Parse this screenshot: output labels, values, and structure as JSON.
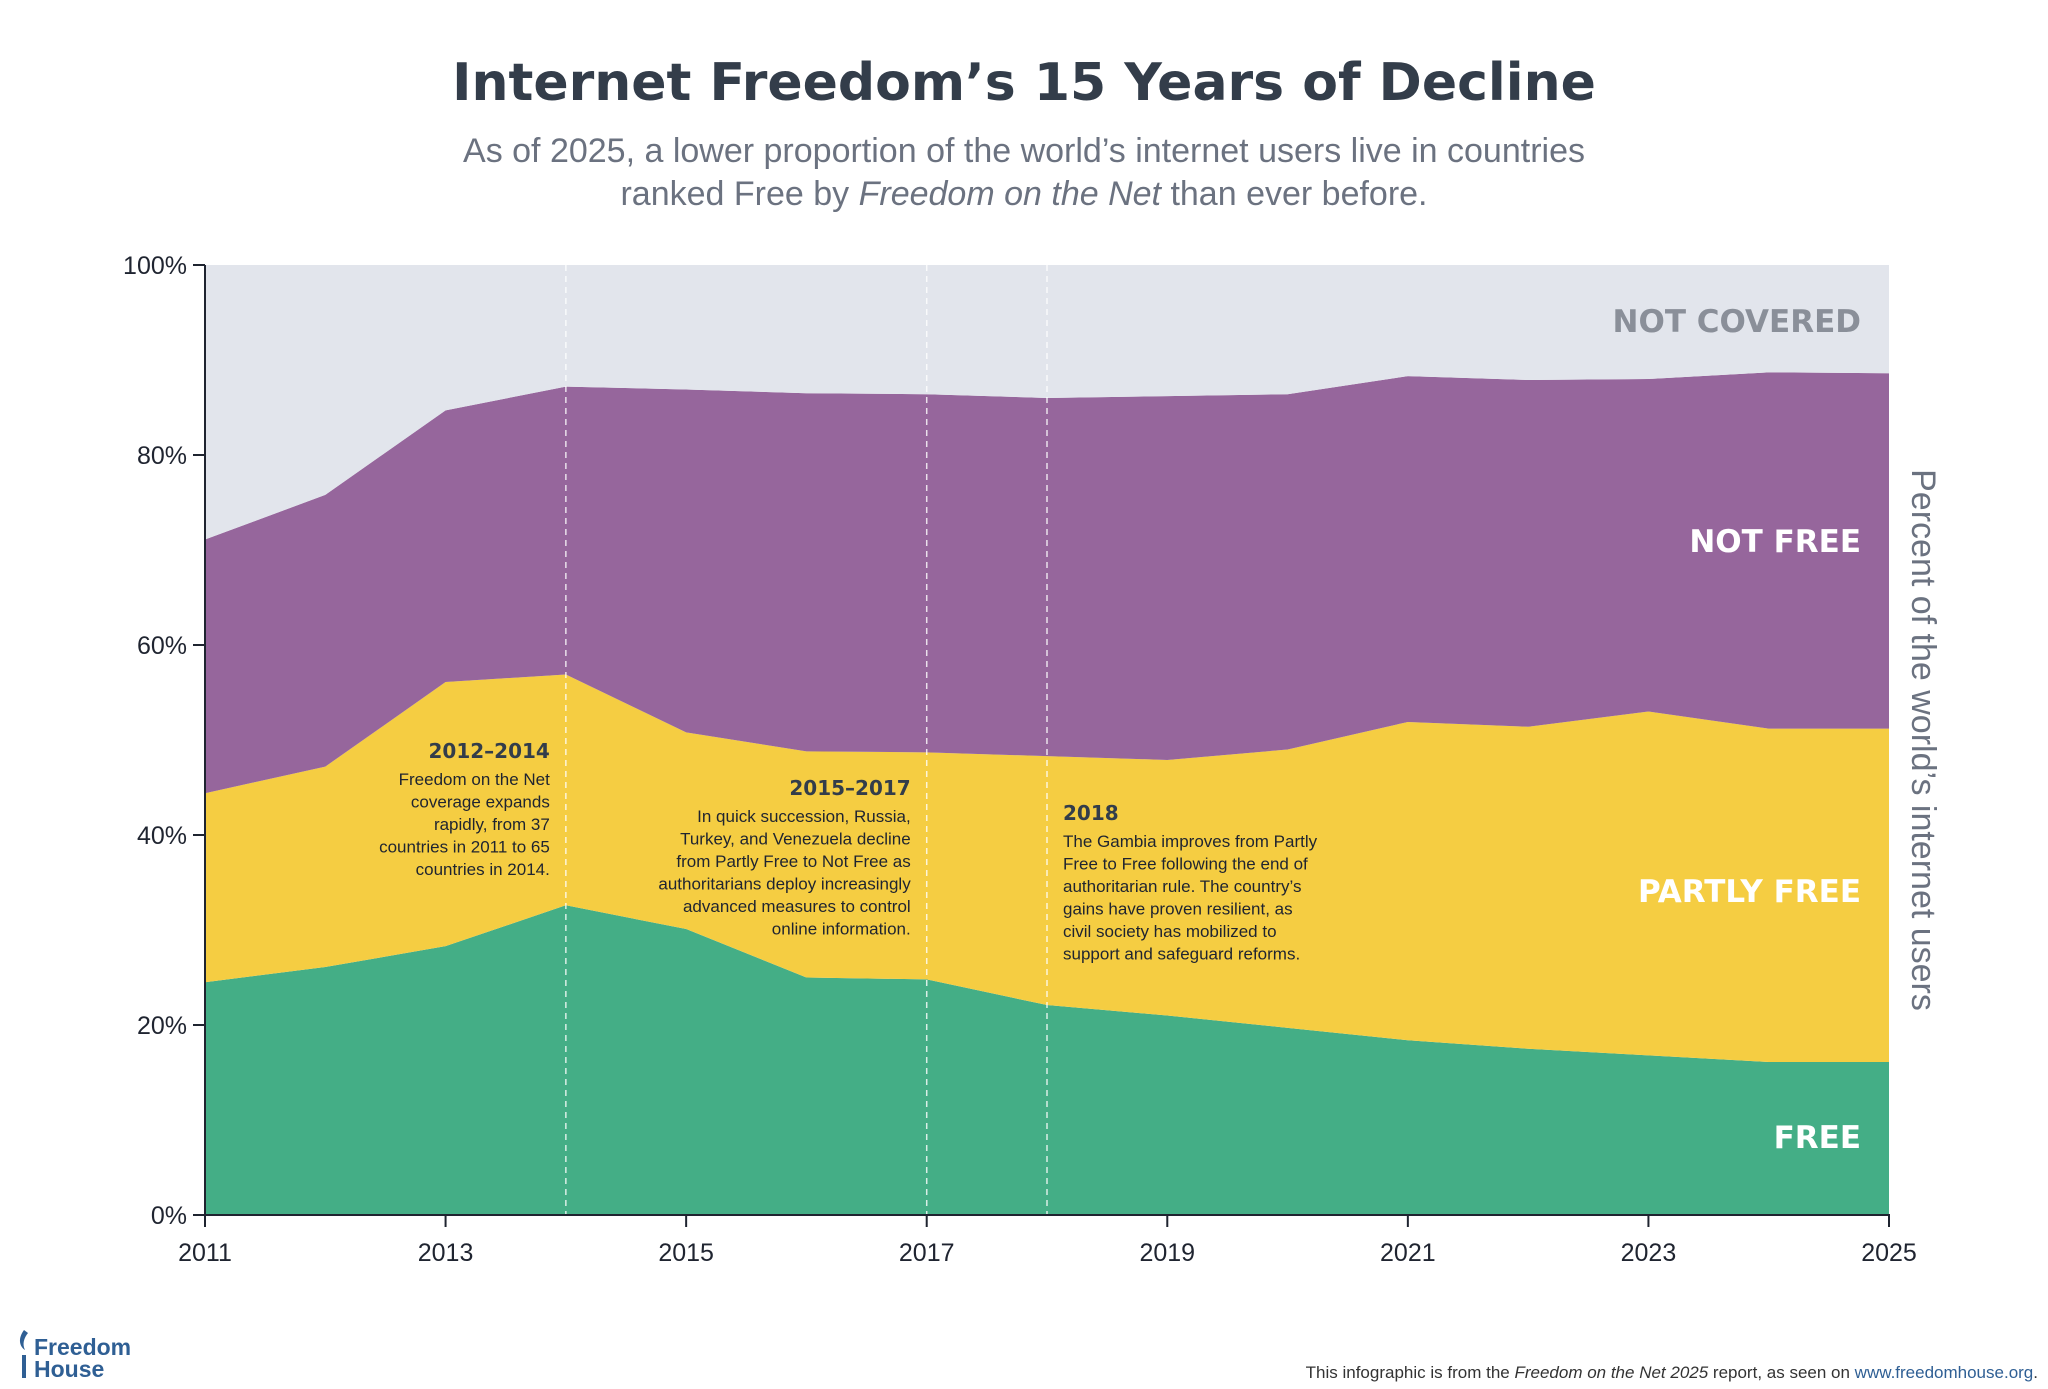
{
  "chart_data": {
    "type": "area",
    "stacked": true,
    "title": "Internet Freedom’s 15 Years of Decline",
    "subtitle_line1": "As of 2025, a lower proportion of the world’s internet users live in countries",
    "subtitle_line2_pre": "ranked Free by ",
    "subtitle_line2_em": "Freedom on the Net",
    "subtitle_line2_post": " than ever before.",
    "ylabel": "Percent of the world’s internet users",
    "ylim": [
      0,
      100
    ],
    "yticks": [
      0,
      20,
      40,
      60,
      80,
      100
    ],
    "ytick_labels": [
      "0%",
      "20%",
      "40%",
      "60%",
      "80%",
      "100%"
    ],
    "xlim": [
      2011,
      2025
    ],
    "xticks": [
      2011,
      2013,
      2015,
      2017,
      2019,
      2021,
      2023,
      2025
    ],
    "xtick_labels": [
      "2011",
      "2013",
      "2015",
      "2017",
      "2019",
      "2021",
      "2023",
      "2025"
    ],
    "x": [
      2011,
      2012,
      2013,
      2014,
      2015,
      2016,
      2017,
      2018,
      2019,
      2020,
      2021,
      2022,
      2023,
      2024,
      2025
    ],
    "series": [
      {
        "name": "FREE",
        "color": "#44ae86",
        "label_color": "#ffffff",
        "values": [
          24.5,
          26.1,
          28.3,
          32.6,
          30.1,
          25.0,
          24.8,
          22.1,
          21.0,
          19.7,
          18.4,
          17.5,
          16.8,
          16.1,
          16.1
        ]
      },
      {
        "name": "PARTLY FREE",
        "color": "#f5cd42",
        "label_color": "#ffffff",
        "values": [
          19.9,
          21.1,
          27.8,
          24.3,
          20.7,
          23.8,
          23.9,
          26.2,
          26.9,
          29.3,
          33.5,
          33.9,
          36.2,
          35.1,
          35.1
        ]
      },
      {
        "name": "NOT FREE",
        "color": "#96669c",
        "label_color": "#ffffff",
        "values": [
          26.7,
          28.6,
          28.6,
          30.3,
          36.1,
          37.7,
          37.7,
          37.7,
          38.3,
          37.4,
          36.4,
          36.5,
          35.0,
          37.5,
          37.4
        ]
      },
      {
        "name": "NOT COVERED",
        "color": "#e2e5ec",
        "label_color": "#8a8f99",
        "values": [
          28.9,
          24.2,
          15.3,
          12.8,
          13.1,
          13.5,
          13.6,
          14.0,
          13.8,
          13.6,
          11.7,
          12.1,
          12.0,
          11.3,
          11.4
        ]
      }
    ],
    "annotations": [
      {
        "x": 2014,
        "title": "2012–2014",
        "align": "right",
        "lines": [
          [
            "Freedom on the Net",
            true
          ],
          [
            "coverage expands",
            false
          ],
          [
            "rapidly, from 37",
            false
          ],
          [
            "countries in 2011 to 65",
            false
          ],
          [
            "countries in 2014.",
            false
          ]
        ]
      },
      {
        "x": 2017,
        "title": "2015–2017",
        "align": "right",
        "lines": [
          [
            "In quick succession, Russia,",
            false
          ],
          [
            "Turkey, and Venezuela decline",
            false
          ],
          [
            "from Partly Free to Not Free as",
            false
          ],
          [
            "authoritarians deploy increasingly",
            false
          ],
          [
            "advanced measures to control",
            false
          ],
          [
            "online information.",
            false
          ]
        ]
      },
      {
        "x": 2018,
        "title": "2018",
        "align": "left",
        "lines": [
          [
            "The Gambia improves from Partly",
            false
          ],
          [
            "Free to Free following the end of",
            false
          ],
          [
            "authoritarian rule. The country’s",
            false
          ],
          [
            "gains have proven resilient, as",
            false
          ],
          [
            "civil society has mobilized to",
            false
          ],
          [
            "support and safeguard reforms.",
            false
          ]
        ]
      }
    ]
  },
  "footer": {
    "logo_line1": "Freedom",
    "logo_line2": "House",
    "source_pre": "This infographic is from the ",
    "source_em": "Freedom on the Net 2025",
    "source_mid": " report, as seen on ",
    "source_link": "www.freedomhouse.org",
    "source_end": "."
  }
}
